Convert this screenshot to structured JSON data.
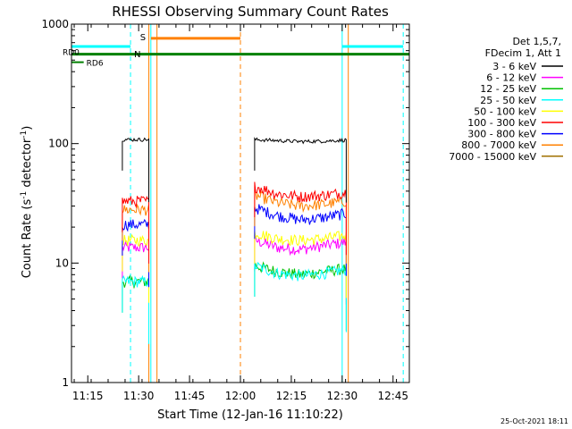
{
  "chart_data": {
    "type": "line",
    "title": "RHESSI Observing Summary Count Rates",
    "xlabel": "Start Time (12-Jan-16 11:10:22)",
    "ylabel_main": "Count Rate (s",
    "ylabel_sup1": "-1",
    "ylabel_mid": " detector",
    "ylabel_sup2": "-1",
    "ylabel_end": ")",
    "yscale": "log",
    "ylim": [
      1,
      1000
    ],
    "xlim_minutes": [
      11.17,
      12.83
    ],
    "x_ticks": [
      {
        "label": "11:15",
        "value": 11.25
      },
      {
        "label": "11:30",
        "value": 11.5
      },
      {
        "label": "11:45",
        "value": 11.75
      },
      {
        "label": "12:00",
        "value": 12.0
      },
      {
        "label": "12:15",
        "value": 12.25
      },
      {
        "label": "12:30",
        "value": 12.5
      },
      {
        "label": "12:45",
        "value": 12.75
      }
    ],
    "y_ticks": [
      {
        "label": "1",
        "value": 1
      },
      {
        "label": "10",
        "value": 10
      },
      {
        "label": "100",
        "value": 100
      },
      {
        "label": "1000",
        "value": 1000
      }
    ],
    "legend_header": [
      "Det 1,5,7,",
      "FDecim 1, Att 1"
    ],
    "series": [
      {
        "name": "3 - 6 keV",
        "color": "#000000",
        "seg1": 108,
        "seg2": [
          108,
          106,
          104,
          105,
          107
        ]
      },
      {
        "name": "6 - 12 keV",
        "color": "#ff00ff",
        "seg1": 13.5,
        "seg2": [
          15.5,
          13.5,
          13,
          14,
          15
        ]
      },
      {
        "name": "12 - 25 keV",
        "color": "#00c000",
        "seg1": 7,
        "seg2": [
          9.5,
          8.5,
          8,
          8.5,
          9
        ]
      },
      {
        "name": "25 - 50 keV",
        "color": "#00ffff",
        "seg1": 7,
        "seg2": [
          9.5,
          8.2,
          7.8,
          8.2,
          8.8
        ]
      },
      {
        "name": "50 - 100 keV",
        "color": "#ffff00",
        "seg1": 15.5,
        "seg2": [
          18,
          16,
          15.5,
          16,
          17
        ]
      },
      {
        "name": "100 - 300 keV",
        "color": "#ff0000",
        "seg1": 33,
        "seg2": [
          44,
          38,
          36,
          37,
          39
        ]
      },
      {
        "name": "300 - 800 keV",
        "color": "#0000ff",
        "seg1": 21,
        "seg2": [
          29,
          25,
          23,
          24,
          26
        ]
      },
      {
        "name": "800 - 7000 keV",
        "color": "#ff8000",
        "seg1": 28,
        "seg2": [
          37,
          32,
          30,
          31,
          33
        ]
      },
      {
        "name": "7000 - 15000 keV",
        "color": "#a07000",
        "seg1": null,
        "seg2": null
      }
    ],
    "segments": [
      {
        "x_start": 11.42,
        "x_end": 11.55
      },
      {
        "x_start": 12.07,
        "x_end": 12.52
      }
    ],
    "flags": {
      "rd0": {
        "label": "RD0",
        "color": "#008000",
        "value": 560,
        "x_start": 11.17,
        "x_end": 12.83
      },
      "rd6": {
        "label": "RD6",
        "color": "#008000",
        "value": 480,
        "x_start": 11.17,
        "x_end": 11.23
      },
      "night": {
        "label": "N",
        "color": "#00ffff",
        "value": 650,
        "ranges": [
          [
            11.17,
            11.46
          ],
          [
            12.5,
            12.8
          ]
        ]
      },
      "saa": {
        "label": "S",
        "color": "#ff8000",
        "value": 760,
        "ranges": [
          [
            11.56,
            12.0
          ]
        ]
      }
    },
    "vlines": [
      {
        "x": 11.17,
        "color": "#00ffff",
        "style": "solid"
      },
      {
        "x": 11.46,
        "color": "#00ffff",
        "style": "dashed"
      },
      {
        "x": 11.56,
        "color": "#00ffff",
        "style": "solid"
      },
      {
        "x": 11.55,
        "color": "#ff8000",
        "style": "solid"
      },
      {
        "x": 11.59,
        "color": "#ff8000",
        "style": "solid"
      },
      {
        "x": 12.0,
        "color": "#ff8000",
        "style": "dashed"
      },
      {
        "x": 12.5,
        "color": "#00ffff",
        "style": "solid"
      },
      {
        "x": 12.8,
        "color": "#00ffff",
        "style": "dashed"
      },
      {
        "x": 12.53,
        "color": "#ff8000",
        "style": "solid"
      }
    ]
  },
  "footer": {
    "timestamp": "25-Oct-2021 18:11"
  }
}
